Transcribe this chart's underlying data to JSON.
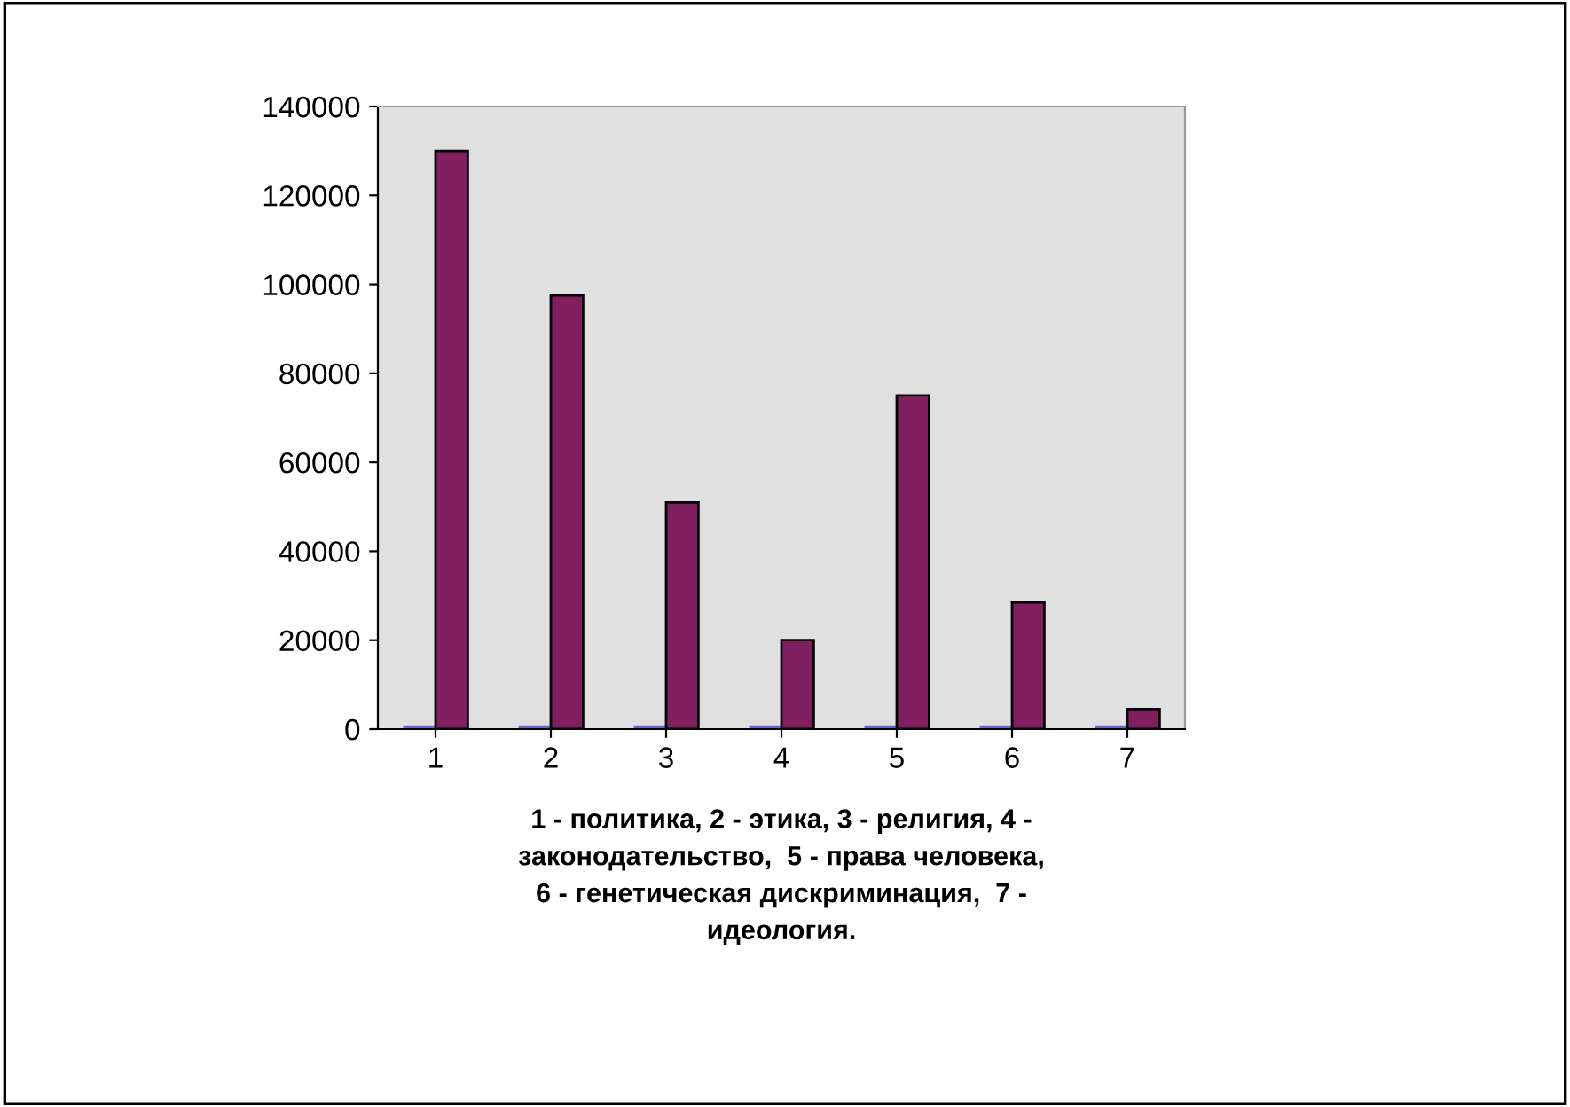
{
  "chart_data": {
    "type": "bar",
    "xlabel": "1 - политика, 2 - этика, 3 - религия, 4 -\nзаконодательство,  5 - права человека,\n6 - генетическая дискриминация,  7 -\nидеология.",
    "categories": [
      "1",
      "2",
      "3",
      "4",
      "5",
      "6",
      "7"
    ],
    "series": [
      {
        "color": "#6666cc",
        "values": [
          0,
          0,
          0,
          0,
          0,
          0,
          0
        ]
      },
      {
        "color": "#7f1f5f",
        "values": [
          130000,
          97500,
          51000,
          20000,
          75000,
          28500,
          4500
        ]
      }
    ],
    "ylim": [
      0,
      140000
    ],
    "yticks": [
      0,
      20000,
      40000,
      60000,
      80000,
      100000,
      120000,
      140000
    ],
    "grid": false,
    "legend": false
  }
}
